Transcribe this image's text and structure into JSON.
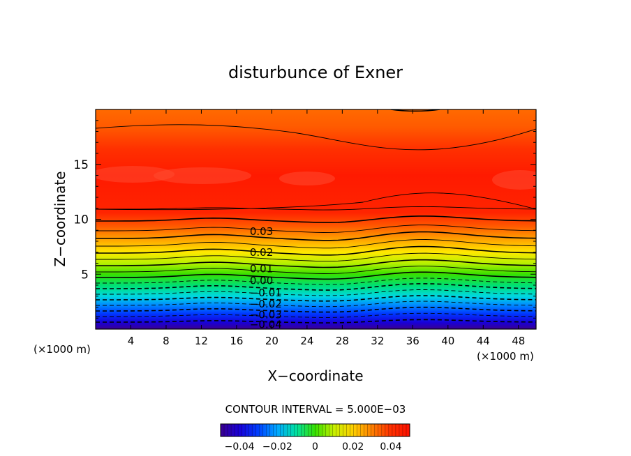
{
  "chart_data": {
    "type": "contour",
    "title": "disturbunce of Exner",
    "xlabel": "X−coordinate",
    "ylabel": "Z−coordinate",
    "x_units": "(×1000 m)",
    "y_units": "(×1000 m)",
    "xlim": [
      0,
      50
    ],
    "ylim": [
      0,
      20
    ],
    "x_ticks": [
      4,
      8,
      12,
      16,
      20,
      24,
      28,
      32,
      36,
      40,
      44,
      48
    ],
    "y_ticks": [
      5,
      10,
      15
    ],
    "contour_interval_label": "CONTOUR INTERVAL = 5.000E−03",
    "contour_labels": [
      {
        "text": "0.03",
        "x": 17.5,
        "z": 8.9
      },
      {
        "text": "0.02",
        "x": 17.5,
        "z": 7.0
      },
      {
        "text": "0.01",
        "x": 17.5,
        "z": 5.5
      },
      {
        "text": "0.00",
        "x": 17.5,
        "z": 4.4
      },
      {
        "text": "−0.01",
        "x": 17.5,
        "z": 3.3
      },
      {
        "text": "−0.02",
        "x": 17.5,
        "z": 2.3
      },
      {
        "text": "−0.03",
        "x": 17.5,
        "z": 1.3
      },
      {
        "text": "−0.04",
        "x": 17.5,
        "z": 0.4
      }
    ],
    "colorbar": {
      "range": [
        -0.05,
        0.05
      ],
      "ticks": [
        "−0.04",
        "−0.02",
        "0",
        "0.02",
        "0.04"
      ],
      "tick_values": [
        -0.04,
        -0.02,
        0,
        0.02,
        0.04
      ]
    }
  }
}
